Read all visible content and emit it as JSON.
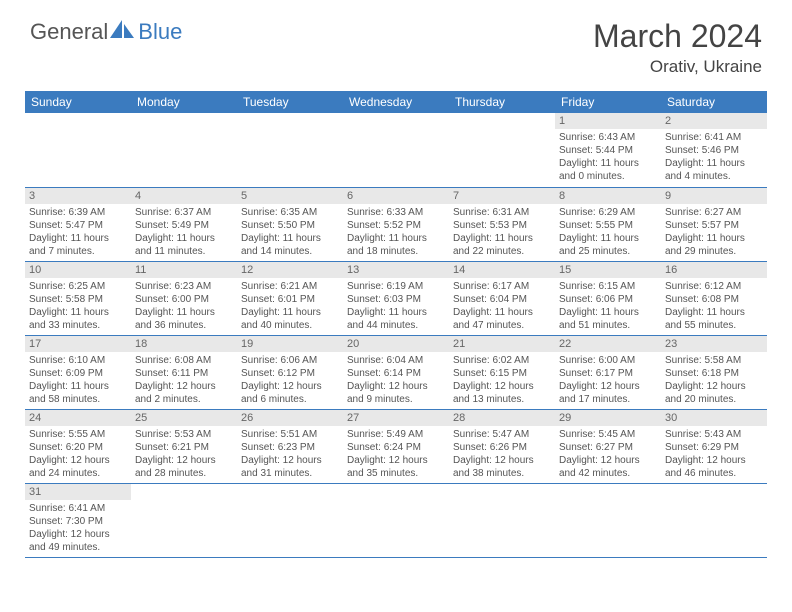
{
  "logo": {
    "general": "General",
    "blue": "Blue"
  },
  "title": "March 2024",
  "location": "Orativ, Ukraine",
  "colors": {
    "header_bg": "#3b7bbf",
    "header_text": "#ffffff",
    "daynum_bg": "#e8e8e8",
    "text": "#555555",
    "row_border": "#3b7bbf",
    "page_bg": "#ffffff"
  },
  "weekdays": [
    "Sunday",
    "Monday",
    "Tuesday",
    "Wednesday",
    "Thursday",
    "Friday",
    "Saturday"
  ],
  "weeks": [
    [
      {
        "n": "",
        "t": ""
      },
      {
        "n": "",
        "t": ""
      },
      {
        "n": "",
        "t": ""
      },
      {
        "n": "",
        "t": ""
      },
      {
        "n": "",
        "t": ""
      },
      {
        "n": "1",
        "t": "Sunrise: 6:43 AM\nSunset: 5:44 PM\nDaylight: 11 hours and 0 minutes."
      },
      {
        "n": "2",
        "t": "Sunrise: 6:41 AM\nSunset: 5:46 PM\nDaylight: 11 hours and 4 minutes."
      }
    ],
    [
      {
        "n": "3",
        "t": "Sunrise: 6:39 AM\nSunset: 5:47 PM\nDaylight: 11 hours and 7 minutes."
      },
      {
        "n": "4",
        "t": "Sunrise: 6:37 AM\nSunset: 5:49 PM\nDaylight: 11 hours and 11 minutes."
      },
      {
        "n": "5",
        "t": "Sunrise: 6:35 AM\nSunset: 5:50 PM\nDaylight: 11 hours and 14 minutes."
      },
      {
        "n": "6",
        "t": "Sunrise: 6:33 AM\nSunset: 5:52 PM\nDaylight: 11 hours and 18 minutes."
      },
      {
        "n": "7",
        "t": "Sunrise: 6:31 AM\nSunset: 5:53 PM\nDaylight: 11 hours and 22 minutes."
      },
      {
        "n": "8",
        "t": "Sunrise: 6:29 AM\nSunset: 5:55 PM\nDaylight: 11 hours and 25 minutes."
      },
      {
        "n": "9",
        "t": "Sunrise: 6:27 AM\nSunset: 5:57 PM\nDaylight: 11 hours and 29 minutes."
      }
    ],
    [
      {
        "n": "10",
        "t": "Sunrise: 6:25 AM\nSunset: 5:58 PM\nDaylight: 11 hours and 33 minutes."
      },
      {
        "n": "11",
        "t": "Sunrise: 6:23 AM\nSunset: 6:00 PM\nDaylight: 11 hours and 36 minutes."
      },
      {
        "n": "12",
        "t": "Sunrise: 6:21 AM\nSunset: 6:01 PM\nDaylight: 11 hours and 40 minutes."
      },
      {
        "n": "13",
        "t": "Sunrise: 6:19 AM\nSunset: 6:03 PM\nDaylight: 11 hours and 44 minutes."
      },
      {
        "n": "14",
        "t": "Sunrise: 6:17 AM\nSunset: 6:04 PM\nDaylight: 11 hours and 47 minutes."
      },
      {
        "n": "15",
        "t": "Sunrise: 6:15 AM\nSunset: 6:06 PM\nDaylight: 11 hours and 51 minutes."
      },
      {
        "n": "16",
        "t": "Sunrise: 6:12 AM\nSunset: 6:08 PM\nDaylight: 11 hours and 55 minutes."
      }
    ],
    [
      {
        "n": "17",
        "t": "Sunrise: 6:10 AM\nSunset: 6:09 PM\nDaylight: 11 hours and 58 minutes."
      },
      {
        "n": "18",
        "t": "Sunrise: 6:08 AM\nSunset: 6:11 PM\nDaylight: 12 hours and 2 minutes."
      },
      {
        "n": "19",
        "t": "Sunrise: 6:06 AM\nSunset: 6:12 PM\nDaylight: 12 hours and 6 minutes."
      },
      {
        "n": "20",
        "t": "Sunrise: 6:04 AM\nSunset: 6:14 PM\nDaylight: 12 hours and 9 minutes."
      },
      {
        "n": "21",
        "t": "Sunrise: 6:02 AM\nSunset: 6:15 PM\nDaylight: 12 hours and 13 minutes."
      },
      {
        "n": "22",
        "t": "Sunrise: 6:00 AM\nSunset: 6:17 PM\nDaylight: 12 hours and 17 minutes."
      },
      {
        "n": "23",
        "t": "Sunrise: 5:58 AM\nSunset: 6:18 PM\nDaylight: 12 hours and 20 minutes."
      }
    ],
    [
      {
        "n": "24",
        "t": "Sunrise: 5:55 AM\nSunset: 6:20 PM\nDaylight: 12 hours and 24 minutes."
      },
      {
        "n": "25",
        "t": "Sunrise: 5:53 AM\nSunset: 6:21 PM\nDaylight: 12 hours and 28 minutes."
      },
      {
        "n": "26",
        "t": "Sunrise: 5:51 AM\nSunset: 6:23 PM\nDaylight: 12 hours and 31 minutes."
      },
      {
        "n": "27",
        "t": "Sunrise: 5:49 AM\nSunset: 6:24 PM\nDaylight: 12 hours and 35 minutes."
      },
      {
        "n": "28",
        "t": "Sunrise: 5:47 AM\nSunset: 6:26 PM\nDaylight: 12 hours and 38 minutes."
      },
      {
        "n": "29",
        "t": "Sunrise: 5:45 AM\nSunset: 6:27 PM\nDaylight: 12 hours and 42 minutes."
      },
      {
        "n": "30",
        "t": "Sunrise: 5:43 AM\nSunset: 6:29 PM\nDaylight: 12 hours and 46 minutes."
      }
    ],
    [
      {
        "n": "31",
        "t": "Sunrise: 6:41 AM\nSunset: 7:30 PM\nDaylight: 12 hours and 49 minutes."
      },
      {
        "n": "",
        "t": ""
      },
      {
        "n": "",
        "t": ""
      },
      {
        "n": "",
        "t": ""
      },
      {
        "n": "",
        "t": ""
      },
      {
        "n": "",
        "t": ""
      },
      {
        "n": "",
        "t": ""
      }
    ]
  ]
}
